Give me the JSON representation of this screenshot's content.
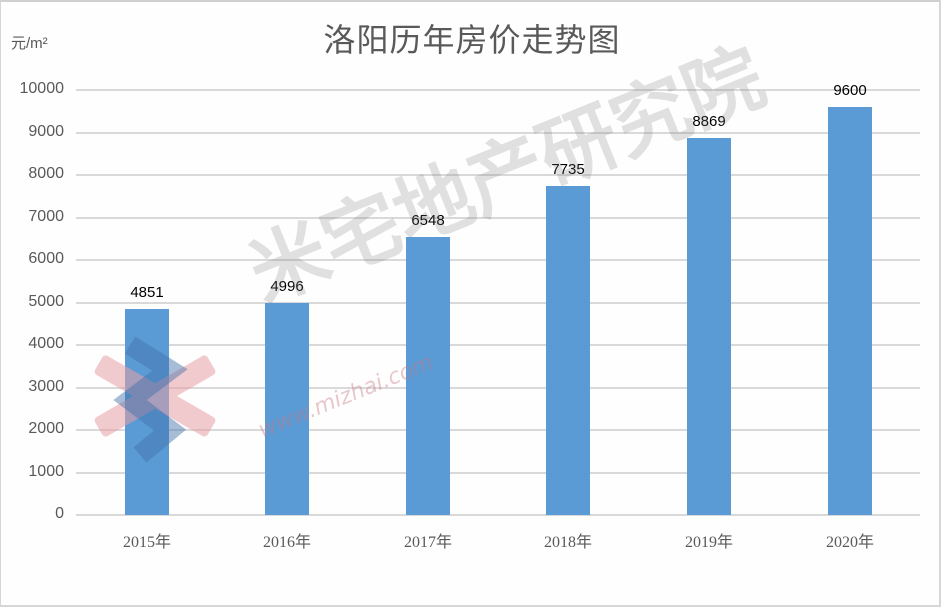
{
  "chart_data": {
    "type": "bar",
    "title": "洛阳历年房价走势图",
    "ylabel": "元/m²",
    "xlabel": "",
    "categories": [
      "2015年",
      "2016年",
      "2017年",
      "2018年",
      "2019年",
      "2020年"
    ],
    "values": [
      4851,
      4996,
      6548,
      7735,
      8869,
      9600
    ],
    "ylim": [
      0,
      10000
    ],
    "yticks": [
      0,
      1000,
      2000,
      3000,
      4000,
      5000,
      6000,
      7000,
      8000,
      9000,
      10000
    ],
    "grid": true,
    "legend": "none",
    "bar_color": "#5b9bd5",
    "data_labels": true
  },
  "watermark": {
    "text": "米宅地产研究院",
    "url": "www.mizhai.com"
  }
}
